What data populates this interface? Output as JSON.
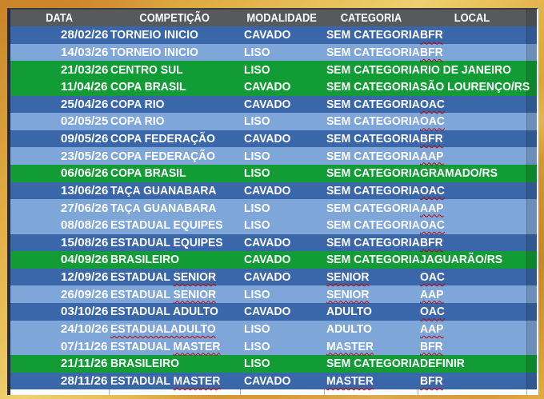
{
  "header": {
    "columns": [
      "DATA",
      "COMPETIÇÃO",
      "MODALIDADE",
      "CATEGORIA",
      "LOCAL"
    ]
  },
  "colors": {
    "header_bg": "#58595B",
    "row_dark": "#3A67A9",
    "row_light": "#7EA6D8",
    "row_green": "#119C35",
    "text": "#FFFFFF",
    "misspell_red": "#C00000",
    "frame_gold": "#DFAC42",
    "frame_gold_dark": "#C8862B",
    "frame_gold_light": "#EFD06F",
    "table_border_dark": "#1E2D4B",
    "bottom_strip": "#FFFFFF"
  },
  "rows": [
    {
      "date": "28/02/26",
      "comp": [
        {
          "t": "TORNEIO INICIO",
          "sp": false
        }
      ],
      "mod": "CAVADO",
      "cat": [
        {
          "t": "SEM CATEGORIA",
          "sp": false
        }
      ],
      "loc": [
        {
          "t": "BFR",
          "sp": true
        }
      ],
      "style": "dark"
    },
    {
      "date": "14/03/26",
      "comp": [
        {
          "t": "TORNEIO INICIO",
          "sp": false
        }
      ],
      "mod": "LISO",
      "cat": [
        {
          "t": "SEM CATEGORIA",
          "sp": false
        }
      ],
      "loc": [
        {
          "t": "BFR",
          "sp": true
        }
      ],
      "style": "light"
    },
    {
      "date": "21/03/26",
      "comp": [
        {
          "t": "CENTRO SUL",
          "sp": false
        }
      ],
      "mod": "LISO",
      "cat": [
        {
          "t": "SEM CATEGORIA",
          "sp": false
        }
      ],
      "loc": [
        {
          "t": "RIO DE JANEIRO",
          "sp": false
        }
      ],
      "style": "green"
    },
    {
      "date": "11/04/26",
      "comp": [
        {
          "t": "COPA BRASIL",
          "sp": false
        }
      ],
      "mod": "CAVADO",
      "cat": [
        {
          "t": "SEM CATEGORIA",
          "sp": false
        }
      ],
      "loc": [
        {
          "t": "SÃO LOURENÇO/RS",
          "sp": false
        }
      ],
      "style": "green"
    },
    {
      "date": "25/04/26",
      "comp": [
        {
          "t": "COPA RIO",
          "sp": false
        }
      ],
      "mod": "CAVADO",
      "cat": [
        {
          "t": "SEM CATEGORIA",
          "sp": false
        }
      ],
      "loc": [
        {
          "t": "OAC",
          "sp": true
        }
      ],
      "style": "dark"
    },
    {
      "date": "02/05/25",
      "comp": [
        {
          "t": "COPA RIO",
          "sp": false
        }
      ],
      "mod": "LISO",
      "cat": [
        {
          "t": "SEM CATEGORIA",
          "sp": false
        }
      ],
      "loc": [
        {
          "t": "OAC",
          "sp": true
        }
      ],
      "style": "light"
    },
    {
      "date": "09/05/26",
      "comp": [
        {
          "t": "COPA FEDERAÇÃO",
          "sp": false
        }
      ],
      "mod": "CAVADO",
      "cat": [
        {
          "t": "SEM CATEGORIA",
          "sp": false
        }
      ],
      "loc": [
        {
          "t": "BFR",
          "sp": true
        }
      ],
      "style": "dark"
    },
    {
      "date": "23/05/26",
      "comp": [
        {
          "t": "COPA FEDERAÇÃO",
          "sp": false
        }
      ],
      "mod": "LISO",
      "cat": [
        {
          "t": "SEM CATEGORIA",
          "sp": false
        }
      ],
      "loc": [
        {
          "t": "AAP",
          "sp": true
        }
      ],
      "style": "light"
    },
    {
      "date": "06/06/26",
      "comp": [
        {
          "t": "COPA BRASIL",
          "sp": false
        }
      ],
      "mod": "LISO",
      "cat": [
        {
          "t": "SEM CATEGORIA",
          "sp": false
        }
      ],
      "loc": [
        {
          "t": "GRAMADO/RS",
          "sp": false
        }
      ],
      "style": "green"
    },
    {
      "date": "13/06/26",
      "comp": [
        {
          "t": "TAÇA GUANABARA",
          "sp": false
        }
      ],
      "mod": "CAVADO",
      "cat": [
        {
          "t": "SEM CATEGORIA",
          "sp": false
        }
      ],
      "loc": [
        {
          "t": "OAC",
          "sp": true
        }
      ],
      "style": "dark"
    },
    {
      "date": "27/06/26",
      "comp": [
        {
          "t": "TAÇA GUANABARA",
          "sp": false
        }
      ],
      "mod": "LISO",
      "cat": [
        {
          "t": "SEM CATEGORIA",
          "sp": false
        }
      ],
      "loc": [
        {
          "t": "AAP",
          "sp": true
        }
      ],
      "style": "light"
    },
    {
      "date": "08/08/26",
      "comp": [
        {
          "t": "ESTADUAL EQUIPES",
          "sp": false
        }
      ],
      "mod": "LISO",
      "cat": [
        {
          "t": "SEM CATEGORIA",
          "sp": false
        }
      ],
      "loc": [
        {
          "t": "OAC",
          "sp": true
        }
      ],
      "style": "light"
    },
    {
      "date": "15/08/26",
      "comp": [
        {
          "t": "ESTADUAL EQUIPES",
          "sp": false
        }
      ],
      "mod": "CAVADO",
      "cat": [
        {
          "t": "SEM CATEGORIA",
          "sp": false
        }
      ],
      "loc": [
        {
          "t": "BFR",
          "sp": true
        }
      ],
      "style": "dark"
    },
    {
      "date": "04/09/26",
      "comp": [
        {
          "t": "BRASILEIRO",
          "sp": false
        }
      ],
      "mod": "CAVADO",
      "cat": [
        {
          "t": "SEM CATEGORIA",
          "sp": false
        }
      ],
      "loc": [
        {
          "t": "JAGUARÃO/RS",
          "sp": false
        }
      ],
      "style": "green"
    },
    {
      "date": "12/09/26",
      "comp": [
        {
          "t": "ESTADUAL ",
          "sp": false
        },
        {
          "t": "SENIOR",
          "sp": true
        }
      ],
      "mod": "CAVADO",
      "cat": [
        {
          "t": "SENIOR",
          "sp": true
        }
      ],
      "loc": [
        {
          "t": "OAC",
          "sp": true
        }
      ],
      "style": "dark"
    },
    {
      "date": "26/09/26",
      "comp": [
        {
          "t": "ESTADUAL ",
          "sp": false
        },
        {
          "t": "SENIOR",
          "sp": true
        }
      ],
      "mod": "LISO",
      "cat": [
        {
          "t": "SENIOR",
          "sp": true
        }
      ],
      "loc": [
        {
          "t": "AAP",
          "sp": true
        }
      ],
      "style": "light"
    },
    {
      "date": "03/10/26",
      "comp": [
        {
          "t": "ESTADUAL ADULTO",
          "sp": false
        }
      ],
      "mod": "CAVADO",
      "cat": [
        {
          "t": "ADULTO",
          "sp": false
        }
      ],
      "loc": [
        {
          "t": "OAC",
          "sp": true
        }
      ],
      "style": "dark"
    },
    {
      "date": "24/10/26",
      "comp": [
        {
          "t": "ESTADUALADULTO",
          "sp": true
        }
      ],
      "mod": "LISO",
      "cat": [
        {
          "t": "ADULTO",
          "sp": false
        }
      ],
      "loc": [
        {
          "t": "AAP",
          "sp": true
        }
      ],
      "style": "light"
    },
    {
      "date": "07/11/26",
      "comp": [
        {
          "t": "ESTADUAL ",
          "sp": false
        },
        {
          "t": "MASTER",
          "sp": true
        }
      ],
      "mod": "LISO",
      "cat": [
        {
          "t": "MASTER",
          "sp": true
        }
      ],
      "loc": [
        {
          "t": "BFR",
          "sp": true
        }
      ],
      "style": "light"
    },
    {
      "date": "21/11/26",
      "comp": [
        {
          "t": "BRASILEIRO",
          "sp": false
        }
      ],
      "mod": "LISO",
      "cat": [
        {
          "t": "SEM CATEGORIA",
          "sp": false
        }
      ],
      "loc": [
        {
          "t": "DEFINIR",
          "sp": false
        }
      ],
      "style": "green"
    },
    {
      "date": "28/11/26",
      "comp": [
        {
          "t": "ESTADUAL ",
          "sp": false
        },
        {
          "t": "MASTER",
          "sp": true
        }
      ],
      "mod": "CAVADO",
      "cat": [
        {
          "t": "MASTER",
          "sp": true
        }
      ],
      "loc": [
        {
          "t": "BFR",
          "sp": true
        }
      ],
      "style": "dark"
    }
  ]
}
